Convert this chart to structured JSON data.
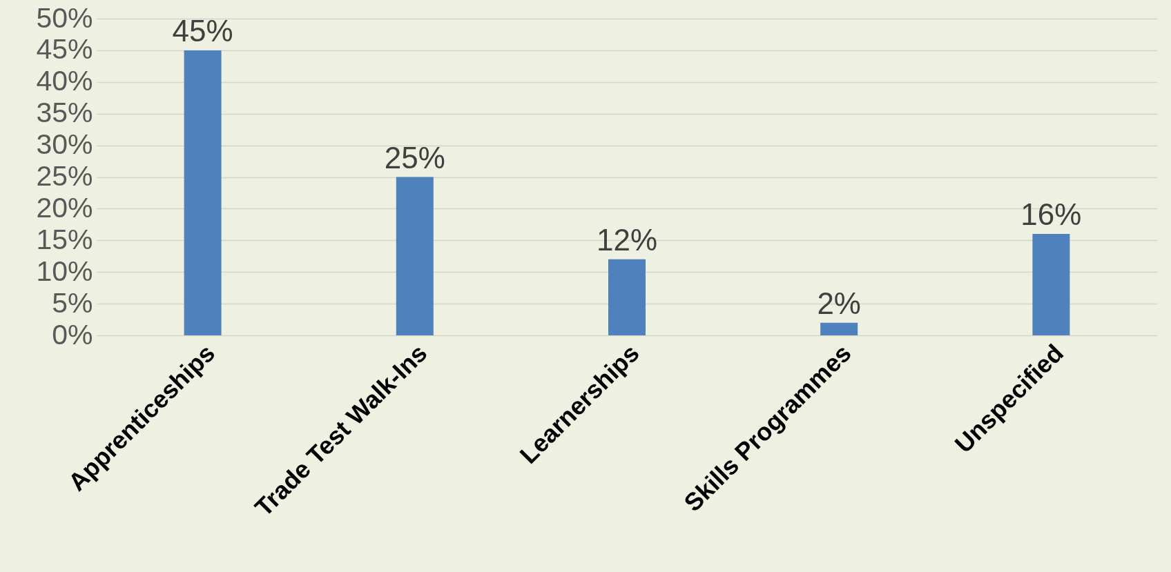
{
  "chart_data": {
    "type": "bar",
    "categories": [
      "Apprenticeships",
      "Trade Test Walk-Ins",
      "Learnerships",
      "Skills Programmes",
      "Unspecified"
    ],
    "values": [
      45,
      25,
      12,
      2,
      16
    ],
    "value_labels": [
      "45%",
      "25%",
      "12%",
      "2%",
      "16%"
    ],
    "color": "#4f81bd",
    "ylim": [
      0,
      50
    ],
    "yticks": [
      {
        "value": 0,
        "label": "0%"
      },
      {
        "value": 5,
        "label": "5%"
      },
      {
        "value": 10,
        "label": "10%"
      },
      {
        "value": 15,
        "label": "15%"
      },
      {
        "value": 20,
        "label": "20%"
      },
      {
        "value": 25,
        "label": "25%"
      },
      {
        "value": 30,
        "label": "30%"
      },
      {
        "value": 35,
        "label": "35%"
      },
      {
        "value": 40,
        "label": "40%"
      },
      {
        "value": 45,
        "label": "45%"
      },
      {
        "value": 50,
        "label": "50%"
      }
    ],
    "grid": "y"
  }
}
